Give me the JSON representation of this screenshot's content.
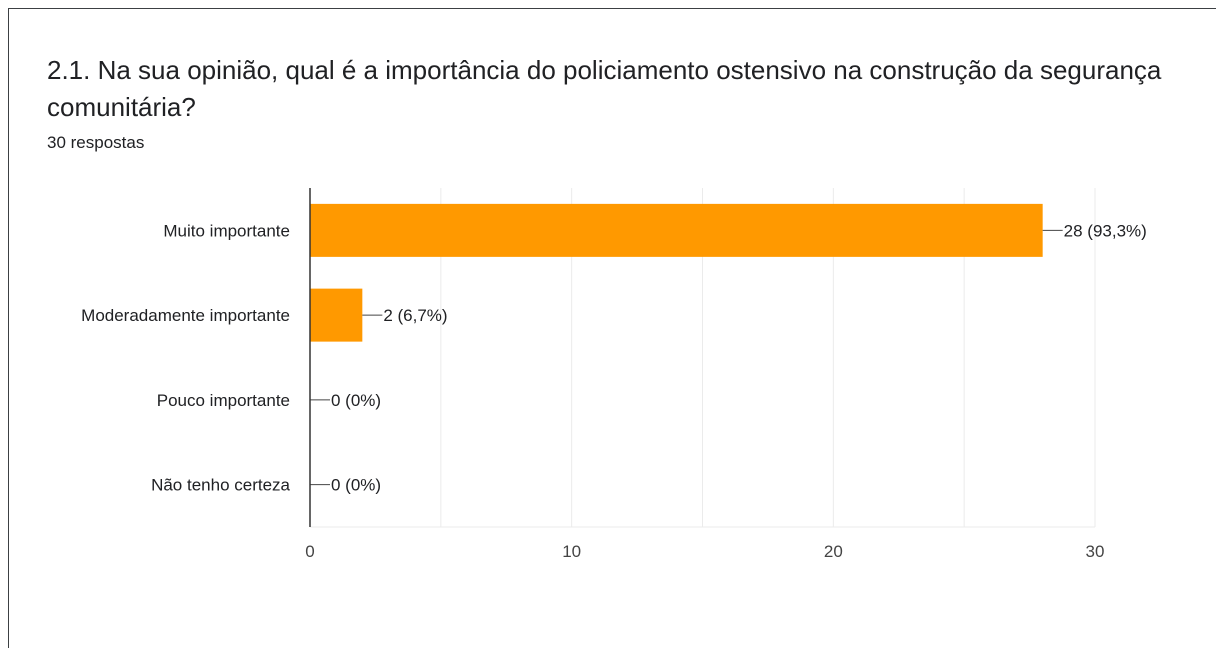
{
  "question": {
    "title": "2.1. Na sua opinião, qual é a importância do policiamento ostensivo na construção da segurança comunitária?",
    "responses": "30 respostas"
  },
  "colors": {
    "bar": "#ff9900",
    "grid": "#ebebeb",
    "axis": "#333333",
    "text": "#202124"
  },
  "chart_data": {
    "type": "bar",
    "orientation": "horizontal",
    "categories": [
      "Muito importante",
      "Moderadamente importante",
      "Pouco importante",
      "Não tenho certeza"
    ],
    "values": [
      28,
      2,
      0,
      0
    ],
    "data_labels": [
      "28 (93,3%)",
      "2 (6,7%)",
      "0 (0%)",
      "0 (0%)"
    ],
    "xlim": [
      0,
      30
    ],
    "xticks": [
      0,
      10,
      20,
      30
    ],
    "grid": true,
    "title": "",
    "xlabel": "",
    "ylabel": ""
  }
}
